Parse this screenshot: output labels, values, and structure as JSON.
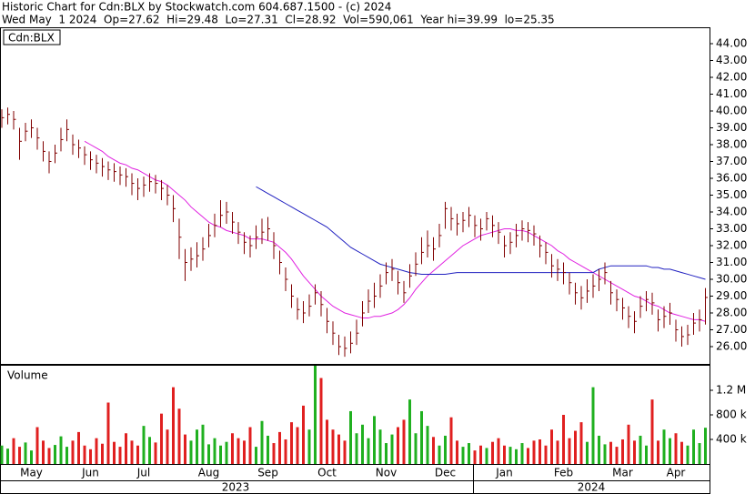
{
  "chart_data": {
    "type": "stock",
    "title": "Historic Chart for Cdn:BLX by Stockwatch.com 604.687.1500 - (c) 2024",
    "subtitle": "Wed May  1 2024  Op=27.62  Hi=29.48  Lo=27.31  Cl=28.92  Vol=590,061  Year hi=39.99  lo=25.35",
    "categories": [
      null,
      null,
      null,
      null,
      null,
      "May",
      null,
      null,
      null,
      null,
      null,
      null,
      null,
      null,
      null,
      "Jun",
      null,
      null,
      null,
      null,
      null,
      null,
      null,
      null,
      "Jul",
      null,
      null,
      null,
      null,
      null,
      null,
      null,
      null,
      null,
      null,
      "Aug",
      null,
      null,
      null,
      null,
      null,
      null,
      null,
      null,
      null,
      "Sep",
      null,
      null,
      null,
      null,
      null,
      null,
      null,
      null,
      null,
      "Oct",
      null,
      null,
      null,
      null,
      null,
      null,
      null,
      null,
      null,
      "Nov",
      null,
      null,
      null,
      null,
      null,
      null,
      null,
      null,
      null,
      "Dec",
      null,
      null,
      null,
      null,
      null,
      null,
      null,
      null,
      null,
      "Jan",
      null,
      null,
      null,
      null,
      null,
      null,
      null,
      null,
      null,
      "Feb",
      null,
      null,
      null,
      null,
      null,
      null,
      null,
      null,
      null,
      "Mar",
      null,
      null,
      null,
      null,
      null,
      null,
      null,
      null,
      "Apr",
      null,
      null,
      null,
      null,
      null
    ],
    "years": [
      "2023",
      "2024"
    ],
    "price": {
      "name": "Cdn:BLX",
      "color": "#800000",
      "high": [
        40.1,
        40.2,
        40.0,
        39.0,
        39.3,
        39.5,
        39.0,
        38.2,
        37.6,
        38.0,
        39.0,
        39.5,
        38.6,
        38.3,
        37.9,
        37.6,
        37.4,
        37.2,
        37.0,
        36.9,
        36.7,
        36.6,
        36.3,
        36.0,
        36.1,
        36.3,
        36.2,
        35.9,
        35.6,
        35.0,
        33.6,
        31.8,
        31.9,
        32.2,
        32.5,
        33.3,
        33.9,
        34.7,
        34.6,
        34.0,
        33.4,
        32.8,
        32.6,
        33.2,
        33.6,
        33.7,
        32.8,
        31.7,
        30.7,
        29.7,
        28.9,
        28.7,
        29.1,
        29.7,
        29.3,
        28.3,
        27.5,
        26.7,
        26.6,
        26.9,
        27.6,
        28.7,
        29.4,
        29.8,
        30.3,
        31.0,
        31.2,
        30.5,
        29.9,
        30.9,
        31.6,
        32.5,
        32.9,
        32.5,
        33.3,
        34.6,
        34.3,
        33.9,
        34.0,
        34.3,
        33.8,
        33.6,
        34.0,
        33.8,
        33.4,
        32.6,
        32.8,
        33.3,
        33.5,
        33.4,
        33.2,
        32.6,
        32.2,
        31.5,
        31.2,
        31.0,
        30.4,
        29.8,
        29.6,
        30.0,
        30.3,
        30.6,
        31.0,
        29.9,
        29.4,
        28.9,
        28.4,
        28.1,
        29.0,
        29.3,
        29.2,
        28.2,
        28.4,
        28.6,
        27.6,
        27.2,
        27.3,
        28.0,
        28.2,
        29.48
      ],
      "low": [
        39.0,
        39.2,
        38.9,
        37.1,
        38.2,
        38.4,
        37.7,
        37.0,
        36.3,
        36.9,
        37.6,
        38.2,
        37.4,
        37.2,
        36.8,
        36.5,
        36.3,
        36.1,
        35.9,
        35.8,
        35.6,
        35.5,
        35.0,
        34.7,
        34.9,
        35.2,
        35.1,
        34.7,
        34.4,
        33.4,
        31.2,
        29.9,
        30.5,
        30.7,
        31.1,
        31.9,
        32.5,
        33.1,
        33.3,
        32.7,
        32.1,
        31.5,
        31.3,
        31.8,
        32.1,
        32.3,
        31.2,
        30.3,
        29.3,
        28.3,
        27.6,
        27.4,
        27.8,
        28.5,
        27.8,
        26.8,
        26.1,
        25.5,
        25.4,
        25.6,
        26.1,
        27.2,
        28.0,
        28.3,
        28.9,
        29.7,
        29.9,
        29.1,
        28.6,
        29.5,
        30.2,
        30.9,
        31.3,
        31.1,
        31.9,
        33.0,
        32.9,
        32.6,
        32.8,
        33.1,
        32.5,
        32.3,
        32.9,
        32.5,
        32.1,
        31.3,
        31.5,
        31.9,
        32.3,
        32.2,
        32.0,
        31.3,
        30.9,
        30.1,
        29.9,
        29.7,
        29.1,
        28.5,
        28.2,
        28.6,
        28.9,
        29.3,
        29.7,
        28.5,
        28.1,
        27.6,
        27.1,
        26.8,
        27.7,
        28.1,
        27.9,
        26.9,
        27.1,
        27.3,
        26.3,
        26.0,
        26.1,
        26.7,
        26.9,
        27.31
      ],
      "close": [
        39.6,
        39.8,
        39.5,
        38.2,
        38.8,
        39.0,
        38.4,
        37.6,
        37.0,
        37.5,
        38.3,
        38.9,
        38.0,
        37.8,
        37.4,
        37.1,
        36.9,
        36.7,
        36.5,
        36.4,
        36.2,
        36.1,
        35.7,
        35.4,
        35.6,
        35.8,
        35.7,
        35.4,
        35.0,
        34.2,
        32.5,
        31.0,
        31.2,
        31.4,
        31.8,
        32.6,
        33.2,
        33.8,
        34.0,
        33.4,
        32.8,
        32.2,
        32.0,
        32.5,
        32.8,
        33.0,
        32.0,
        31.0,
        30.0,
        29.0,
        28.2,
        28.0,
        28.4,
        29.2,
        28.5,
        27.5,
        26.8,
        26.0,
        25.9,
        26.2,
        26.8,
        28.0,
        28.7,
        29.0,
        29.6,
        30.4,
        30.6,
        29.8,
        29.2,
        30.2,
        30.9,
        31.6,
        32.0,
        31.8,
        32.6,
        34.2,
        33.6,
        33.3,
        33.5,
        33.8,
        33.2,
        33.0,
        33.6,
        33.2,
        32.8,
        32.0,
        32.2,
        32.6,
        33.0,
        32.9,
        32.7,
        32.0,
        31.6,
        30.8,
        30.6,
        30.4,
        29.8,
        29.2,
        28.9,
        29.3,
        29.6,
        30.0,
        30.4,
        29.2,
        28.8,
        28.3,
        27.8,
        27.5,
        28.4,
        28.8,
        28.6,
        27.6,
        27.8,
        28.0,
        27.0,
        26.6,
        26.7,
        27.4,
        27.6,
        28.92
      ]
    },
    "moving_averages": [
      {
        "color": "#e020e0",
        "values": [
          null,
          null,
          null,
          null,
          null,
          null,
          null,
          null,
          null,
          null,
          null,
          null,
          null,
          null,
          38.2,
          38.0,
          37.8,
          37.6,
          37.3,
          37.1,
          36.9,
          36.8,
          36.6,
          36.5,
          36.3,
          36.1,
          35.9,
          35.8,
          35.6,
          35.3,
          35.0,
          34.7,
          34.3,
          34.0,
          33.7,
          33.4,
          33.2,
          33.1,
          32.9,
          32.8,
          32.7,
          32.6,
          32.4,
          32.4,
          32.4,
          32.3,
          32.2,
          31.9,
          31.6,
          31.2,
          30.7,
          30.2,
          29.8,
          29.4,
          29.0,
          28.7,
          28.4,
          28.2,
          28.0,
          27.9,
          27.8,
          27.7,
          27.7,
          27.8,
          27.8,
          27.9,
          28.0,
          28.2,
          28.5,
          28.9,
          29.4,
          29.8,
          30.2,
          30.5,
          30.8,
          31.1,
          31.4,
          31.7,
          32.0,
          32.2,
          32.4,
          32.6,
          32.7,
          32.8,
          32.9,
          33.0,
          33.0,
          32.9,
          32.9,
          32.8,
          32.6,
          32.4,
          32.2,
          32.0,
          31.7,
          31.5,
          31.2,
          31.0,
          30.8,
          30.6,
          30.4,
          30.2,
          30.0,
          29.8,
          29.6,
          29.4,
          29.2,
          29.0,
          28.9,
          28.7,
          28.5,
          28.4,
          28.2,
          28.0,
          27.9,
          27.8,
          27.7,
          27.6,
          27.6,
          27.5
        ]
      },
      {
        "color": "#2020c0",
        "values": [
          null,
          null,
          null,
          null,
          null,
          null,
          null,
          null,
          null,
          null,
          null,
          null,
          null,
          null,
          null,
          null,
          null,
          null,
          null,
          null,
          null,
          null,
          null,
          null,
          null,
          null,
          null,
          null,
          null,
          null,
          null,
          null,
          null,
          null,
          null,
          null,
          null,
          null,
          null,
          null,
          null,
          null,
          null,
          35.5,
          35.3,
          35.1,
          34.9,
          34.7,
          34.5,
          34.3,
          34.1,
          33.9,
          33.7,
          33.5,
          33.3,
          33.1,
          32.8,
          32.5,
          32.2,
          31.9,
          31.7,
          31.5,
          31.3,
          31.1,
          30.9,
          30.8,
          30.7,
          30.6,
          30.5,
          30.4,
          30.35,
          30.3,
          30.3,
          30.3,
          30.3,
          30.3,
          30.35,
          30.4,
          30.4,
          30.4,
          30.4,
          30.4,
          30.4,
          30.4,
          30.4,
          30.4,
          30.4,
          30.4,
          30.4,
          30.4,
          30.4,
          30.4,
          30.4,
          30.4,
          30.4,
          30.4,
          30.4,
          30.4,
          30.4,
          30.4,
          30.4,
          30.6,
          30.7,
          30.8,
          30.8,
          30.8,
          30.8,
          30.8,
          30.8,
          30.8,
          30.7,
          30.7,
          30.6,
          30.6,
          30.5,
          30.4,
          30.3,
          30.2,
          30.1,
          30.0
        ]
      }
    ],
    "ylim": [
      25,
      45
    ],
    "yticks": [
      {
        "value": 26,
        "label": "26.00"
      },
      {
        "value": 27,
        "label": "27.00"
      },
      {
        "value": 28,
        "label": "28.00"
      },
      {
        "value": 29,
        "label": "29.00"
      },
      {
        "value": 30,
        "label": "30.00"
      },
      {
        "value": 31,
        "label": "31.00"
      },
      {
        "value": 32,
        "label": "32.00"
      },
      {
        "value": 33,
        "label": "33.00"
      },
      {
        "value": 34,
        "label": "34.00"
      },
      {
        "value": 35,
        "label": "35.00"
      },
      {
        "value": 36,
        "label": "36.00"
      },
      {
        "value": 37,
        "label": "37.00"
      },
      {
        "value": 38,
        "label": "38.00"
      },
      {
        "value": 39,
        "label": "39.00"
      },
      {
        "value": 40,
        "label": "40.00"
      },
      {
        "value": 41,
        "label": "41.00"
      },
      {
        "value": 42,
        "label": "42.00"
      },
      {
        "value": 43,
        "label": "43.00"
      },
      {
        "value": 44,
        "label": "44.00"
      }
    ],
    "volume": {
      "label": "Volume",
      "up_color": "#20b020",
      "down_color": "#e02020",
      "values": [
        300000,
        250000,
        420000,
        280000,
        350000,
        220000,
        600000,
        380000,
        260000,
        310000,
        450000,
        280000,
        380000,
        520000,
        300000,
        240000,
        420000,
        330000,
        1000000,
        360000,
        280000,
        500000,
        380000,
        300000,
        620000,
        440000,
        350000,
        820000,
        560000,
        1250000,
        900000,
        480000,
        380000,
        560000,
        640000,
        320000,
        420000,
        300000,
        360000,
        500000,
        420000,
        380000,
        600000,
        280000,
        700000,
        460000,
        340000,
        520000,
        400000,
        680000,
        600000,
        950000,
        560000,
        1600000,
        1400000,
        720000,
        560000,
        480000,
        380000,
        860000,
        500000,
        640000,
        420000,
        780000,
        560000,
        340000,
        480000,
        600000,
        720000,
        1050000,
        500000,
        860000,
        620000,
        440000,
        300000,
        460000,
        760000,
        380000,
        280000,
        340000,
        220000,
        300000,
        260000,
        360000,
        420000,
        300000,
        280000,
        240000,
        340000,
        260000,
        380000,
        400000,
        300000,
        560000,
        380000,
        800000,
        420000,
        540000,
        680000,
        360000,
        1250000,
        460000,
        320000,
        360000,
        280000,
        400000,
        640000,
        380000,
        460000,
        300000,
        1050000,
        380000,
        560000,
        420000,
        500000,
        360000,
        300000,
        560000,
        340000,
        590061
      ],
      "ylim": [
        0,
        1600000
      ],
      "yticks": [
        {
          "value": 400000,
          "label": "400 k"
        },
        {
          "value": 800000,
          "label": "800 k"
        },
        {
          "value": 1200000,
          "label": "1.2 M"
        }
      ]
    }
  }
}
